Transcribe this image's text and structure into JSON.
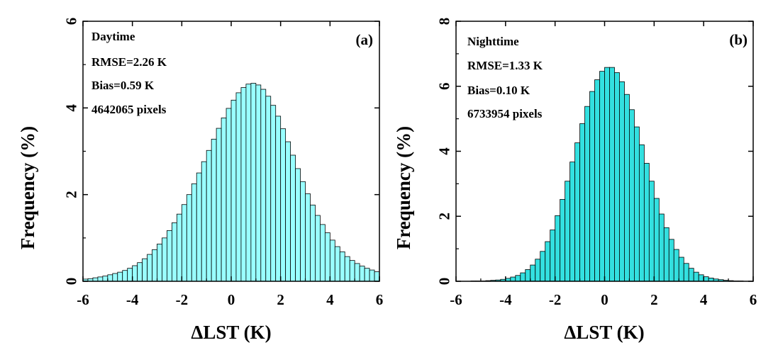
{
  "chart_data": [
    {
      "type": "bar",
      "id": "a",
      "panel_label": "(a)",
      "xlabel": "ΔLST (K)",
      "ylabel": "Frequency (%)",
      "xlim": [
        -6,
        6
      ],
      "ylim": [
        0,
        6
      ],
      "xticks": [
        -6,
        -4,
        -2,
        0,
        2,
        4,
        6
      ],
      "yticks": [
        0,
        2,
        4,
        6
      ],
      "xtick_labels": [
        "-6",
        "-4",
        "-2",
        "0",
        "2",
        "4",
        "6"
      ],
      "ytick_labels": [
        "0",
        "2",
        "4",
        "6"
      ],
      "bar_color": "#99FFFF",
      "bar_edge": "#000000",
      "annotations": [
        "Daytime",
        "RMSE=2.26 K",
        "Bias=0.59 K",
        "4642065 pixels"
      ],
      "bin_centers": [
        -5.9,
        -5.7,
        -5.5,
        -5.3,
        -5.1,
        -4.9,
        -4.7,
        -4.5,
        -4.3,
        -4.1,
        -3.9,
        -3.7,
        -3.5,
        -3.3,
        -3.1,
        -2.9,
        -2.7,
        -2.5,
        -2.3,
        -2.1,
        -1.9,
        -1.7,
        -1.5,
        -1.3,
        -1.1,
        -0.9,
        -0.7,
        -0.5,
        -0.3,
        -0.1,
        0.1,
        0.3,
        0.5,
        0.7,
        0.9,
        1.1,
        1.3,
        1.5,
        1.7,
        1.9,
        2.1,
        2.3,
        2.5,
        2.7,
        2.9,
        3.1,
        3.3,
        3.5,
        3.7,
        3.9,
        4.1,
        4.3,
        4.5,
        4.7,
        4.9,
        5.1,
        5.3,
        5.5,
        5.7,
        5.9
      ],
      "values": [
        0.05,
        0.06,
        0.08,
        0.1,
        0.12,
        0.15,
        0.18,
        0.21,
        0.25,
        0.3,
        0.36,
        0.43,
        0.52,
        0.62,
        0.73,
        0.86,
        1.0,
        1.17,
        1.35,
        1.55,
        1.77,
        2.0,
        2.25,
        2.5,
        2.76,
        3.02,
        3.28,
        3.53,
        3.77,
        3.99,
        4.18,
        4.35,
        4.47,
        4.55,
        4.57,
        4.53,
        4.43,
        4.27,
        4.06,
        3.81,
        3.52,
        3.22,
        2.91,
        2.6,
        2.3,
        2.02,
        1.76,
        1.52,
        1.31,
        1.12,
        0.95,
        0.8,
        0.68,
        0.57,
        0.48,
        0.41,
        0.35,
        0.3,
        0.26,
        0.22
      ]
    },
    {
      "type": "bar",
      "id": "b",
      "panel_label": "(b)",
      "xlabel": "ΔLST (K)",
      "ylabel": "Frequency (%)",
      "xlim": [
        -6,
        6
      ],
      "ylim": [
        0,
        8
      ],
      "xticks": [
        -6,
        -4,
        -2,
        0,
        2,
        4,
        6
      ],
      "yticks": [
        0,
        2,
        4,
        6,
        8
      ],
      "xtick_labels": [
        "-6",
        "-4",
        "-2",
        "0",
        "2",
        "4",
        "6"
      ],
      "ytick_labels": [
        "0",
        "2",
        "4",
        "6",
        "8"
      ],
      "bar_color": "#33E0E0",
      "bar_edge": "#000000",
      "annotations": [
        "Nighttime",
        "RMSE=1.33 K",
        "Bias=0.10 K",
        "6733954 pixels"
      ],
      "bin_centers": [
        -5.9,
        -5.7,
        -5.5,
        -5.3,
        -5.1,
        -4.9,
        -4.7,
        -4.5,
        -4.3,
        -4.1,
        -3.9,
        -3.7,
        -3.5,
        -3.3,
        -3.1,
        -2.9,
        -2.7,
        -2.5,
        -2.3,
        -2.1,
        -1.9,
        -1.7,
        -1.5,
        -1.3,
        -1.1,
        -0.9,
        -0.7,
        -0.5,
        -0.3,
        -0.1,
        0.1,
        0.3,
        0.5,
        0.7,
        0.9,
        1.1,
        1.3,
        1.5,
        1.7,
        1.9,
        2.1,
        2.3,
        2.5,
        2.7,
        2.9,
        3.1,
        3.3,
        3.5,
        3.7,
        3.9,
        4.1,
        4.3,
        4.5,
        4.7,
        4.9,
        5.1,
        5.3,
        5.5,
        5.7,
        5.9
      ],
      "values": [
        0.0,
        0.0,
        0.0,
        0.01,
        0.01,
        0.01,
        0.02,
        0.03,
        0.04,
        0.06,
        0.09,
        0.13,
        0.18,
        0.26,
        0.36,
        0.5,
        0.68,
        0.92,
        1.22,
        1.58,
        2.02,
        2.52,
        3.08,
        3.67,
        4.26,
        4.85,
        5.38,
        5.84,
        6.2,
        6.46,
        6.58,
        6.58,
        6.42,
        6.14,
        5.75,
        5.28,
        4.75,
        4.2,
        3.63,
        3.08,
        2.55,
        2.07,
        1.65,
        1.29,
        0.98,
        0.74,
        0.55,
        0.4,
        0.28,
        0.2,
        0.14,
        0.1,
        0.07,
        0.05,
        0.03,
        0.02,
        0.01,
        0.01,
        0.0,
        0.0
      ]
    }
  ]
}
